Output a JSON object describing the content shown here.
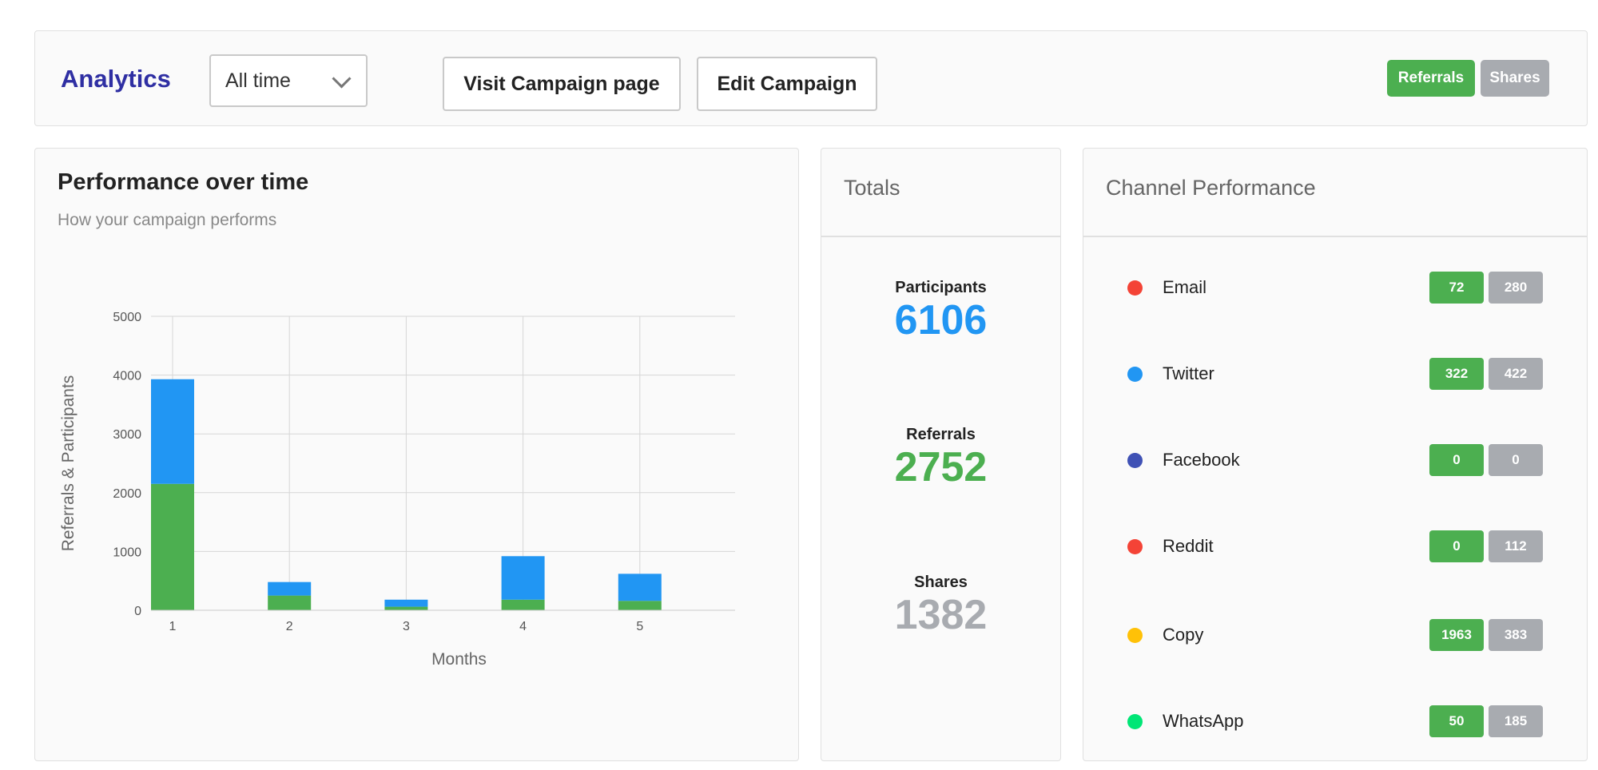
{
  "header": {
    "title": "Analytics",
    "range_select": "All time",
    "visit_button": "Visit Campaign page",
    "edit_button": "Edit Campaign",
    "toggle_referrals": "Referrals",
    "toggle_shares": "Shares"
  },
  "performance": {
    "title": "Performance over time",
    "subtitle": "How your campaign performs"
  },
  "chart_data": {
    "type": "bar",
    "stacked": true,
    "categories": [
      "1",
      "2",
      "3",
      "4",
      "5"
    ],
    "series": [
      {
        "color": "#4caf50",
        "values": [
          2150,
          250,
          60,
          180,
          160
        ]
      },
      {
        "color": "#2196f3",
        "values": [
          1780,
          230,
          120,
          740,
          460
        ]
      }
    ],
    "xlabel": "Months",
    "ylabel": "Referrals & Participants",
    "ylim": [
      0,
      5000
    ],
    "yticks": [
      0,
      1000,
      2000,
      3000,
      4000,
      5000
    ],
    "grid": true
  },
  "totals": {
    "title": "Totals",
    "items": [
      {
        "label": "Participants",
        "value": "6106",
        "color": "#2196f3"
      },
      {
        "label": "Referrals",
        "value": "2752",
        "color": "#4caf50"
      },
      {
        "label": "Shares",
        "value": "1382",
        "color": "#a8abb0"
      }
    ]
  },
  "channels": {
    "title": "Channel Performance",
    "items": [
      {
        "name": "Email",
        "color": "#f44336",
        "referrals": "72",
        "shares": "280"
      },
      {
        "name": "Twitter",
        "color": "#2196f3",
        "referrals": "322",
        "shares": "422"
      },
      {
        "name": "Facebook",
        "color": "#3f51b5",
        "referrals": "0",
        "shares": "0"
      },
      {
        "name": "Reddit",
        "color": "#f44336",
        "referrals": "0",
        "shares": "112"
      },
      {
        "name": "Copy",
        "color": "#ffc107",
        "referrals": "1963",
        "shares": "383"
      },
      {
        "name": "WhatsApp",
        "color": "#00e676",
        "referrals": "50",
        "shares": "185"
      }
    ]
  }
}
